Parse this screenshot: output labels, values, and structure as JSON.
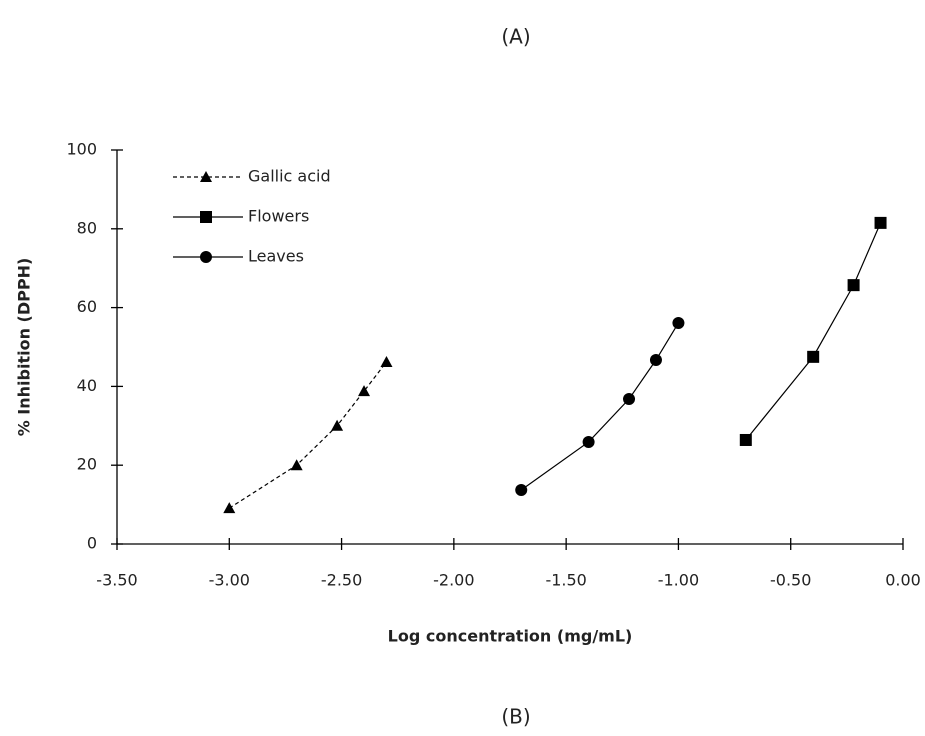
{
  "chart_data": {
    "type": "line",
    "title": "(A)",
    "caption": "(B)",
    "x_label": "Log concentration (mg/mL)",
    "y_label": "% Inhibition (DPPH)",
    "xlim": [
      -3.5,
      0
    ],
    "ylim": [
      0,
      100
    ],
    "xticks": [
      {
        "value": -3.5,
        "label": "-3.50"
      },
      {
        "value": -3,
        "label": "-3.00"
      },
      {
        "value": -2.5,
        "label": "-2.50"
      },
      {
        "value": -2,
        "label": "-2.00"
      },
      {
        "value": -1.5,
        "label": "-1.50"
      },
      {
        "value": -1,
        "label": "-1.00"
      },
      {
        "value": -0.5,
        "label": "-0.50"
      },
      {
        "value": 0,
        "label": "0.00"
      }
    ],
    "yticks": [
      0,
      20,
      40,
      60,
      80,
      100
    ],
    "grid": false,
    "legend": "upper left",
    "series": [
      {
        "name": "Gallic acid",
        "color": "#000000",
        "marker": "triangle",
        "dashed": true,
        "x": [
          -3.0,
          -2.7,
          -2.52,
          -2.4,
          -2.3
        ],
        "values": [
          9.1,
          20.0,
          30.0,
          38.8,
          46.2
        ]
      },
      {
        "name": "Flowers",
        "color": "#000000",
        "marker": "square",
        "dashed": false,
        "x": [
          -0.7,
          -0.4,
          -0.22,
          -0.1
        ],
        "values": [
          26.4,
          47.5,
          65.7,
          81.5
        ]
      },
      {
        "name": "Leaves",
        "color": "#000000",
        "marker": "circle",
        "dashed": false,
        "x": [
          -1.7,
          -1.4,
          -1.22,
          -1.1,
          -1.0
        ],
        "values": [
          13.7,
          25.9,
          36.8,
          46.7,
          56.1
        ]
      }
    ]
  }
}
